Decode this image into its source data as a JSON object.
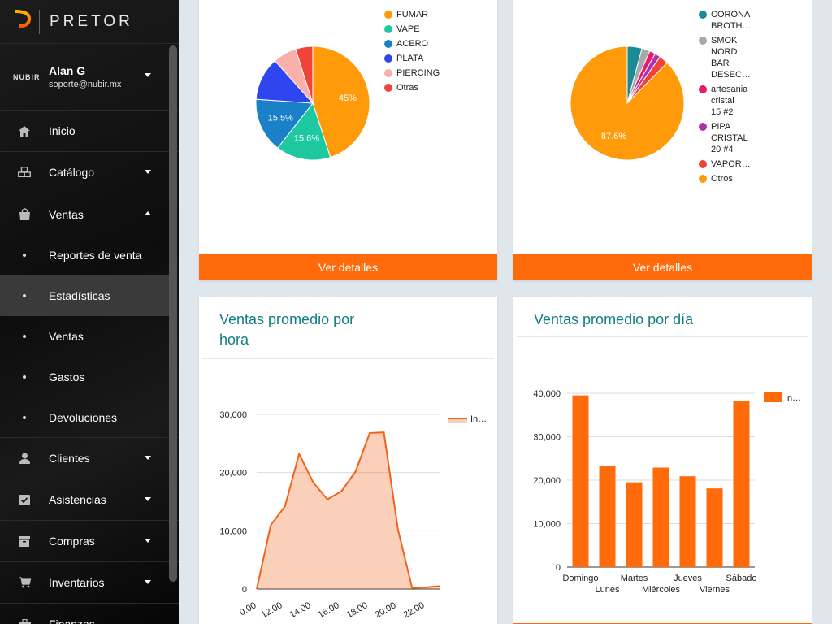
{
  "brand": {
    "name": "PRETOR"
  },
  "user": {
    "org": "NUBIR",
    "name": "Alan G",
    "email": "soporte@nubir.mx"
  },
  "nav": {
    "inicio": "Inicio",
    "catalogo": "Catálogo",
    "ventas": "Ventas",
    "sub": [
      "Reportes de venta",
      "Estadísticas",
      "Ventas",
      "Gastos",
      "Devoluciones"
    ],
    "clientes": "Clientes",
    "asistencias": "Asistencias",
    "compras": "Compras",
    "inventarios": "Inventarios",
    "finanzas": "Finanzas"
  },
  "pie1": {
    "button": "Ver detalles",
    "chart_data": {
      "type": "pie",
      "labels": [
        "FUMAR",
        "VAPE",
        "ACERO",
        "PLATA",
        "PIERCING",
        "Otras"
      ],
      "values": [
        45,
        15.6,
        15.5,
        12.3,
        6.7,
        4.9
      ],
      "colors": [
        "#ff9a0a",
        "#1ec8a0",
        "#1a80c8",
        "#2f45f0",
        "#f8b0a8",
        "#f04438"
      ],
      "slice_labels": [
        "45%",
        "15.6%",
        "15.5%",
        "",
        "",
        ""
      ]
    }
  },
  "pie2": {
    "button": "Ver detalles",
    "chart_data": {
      "type": "pie",
      "labels": [
        "CORONA BROTH…",
        "SMOK NORD BAR DESEC…",
        "artesania cristal 15 #2",
        "PIPA CRISTAL 20 #4",
        "VAPOR…",
        "Otros"
      ],
      "legend_lines": [
        [
          "CORONA",
          "BROTH…"
        ],
        [
          "SMOK",
          "NORD",
          "BAR",
          "DESEC…"
        ],
        [
          "artesania",
          "cristal",
          "15 #2"
        ],
        [
          "PIPA",
          "CRISTAL",
          "20 #4"
        ],
        [
          "VAPOR…"
        ],
        [
          "Otros"
        ]
      ],
      "values": [
        4.2,
        2.3,
        1.7,
        1.6,
        2.6,
        87.6
      ],
      "colors": [
        "#1a8a94",
        "#a8a8a8",
        "#e8186a",
        "#b030b0",
        "#f04438",
        "#ff9a0a"
      ],
      "slice_labels": [
        "",
        "",
        "",
        "",
        "",
        "87.6%"
      ]
    }
  },
  "hourly": {
    "title_lines": [
      "Ventas promedio por",
      "hora"
    ],
    "chart_data": {
      "type": "area",
      "series_name": "In…",
      "x_labels": [
        "0:00",
        "12:00",
        "14:00",
        "16:00",
        "18:00",
        "20:00",
        "22:00"
      ],
      "y_ticks": [
        "30,000",
        "20,000",
        "10,000",
        "0"
      ],
      "ylim": [
        0,
        30000
      ],
      "values": [
        0,
        11000,
        14200,
        23200,
        18300,
        15400,
        16800,
        20200,
        26800,
        26900,
        10200,
        200,
        300,
        500
      ],
      "color": "#f0641a"
    }
  },
  "daily": {
    "title": "Ventas promedio por día",
    "chart_data": {
      "type": "bar",
      "series_name": "In…",
      "categories": [
        "Domingo",
        "Lunes",
        "Martes",
        "Miércoles",
        "Jueves",
        "Viernes",
        "Sábado"
      ],
      "values": [
        39500,
        23300,
        19500,
        22900,
        20900,
        18100,
        38200
      ],
      "y_ticks": [
        "40,000",
        "30,000",
        "20,000",
        "10,000",
        "0"
      ],
      "ylim": [
        0,
        40000
      ],
      "color": "#ff6a0a"
    }
  }
}
